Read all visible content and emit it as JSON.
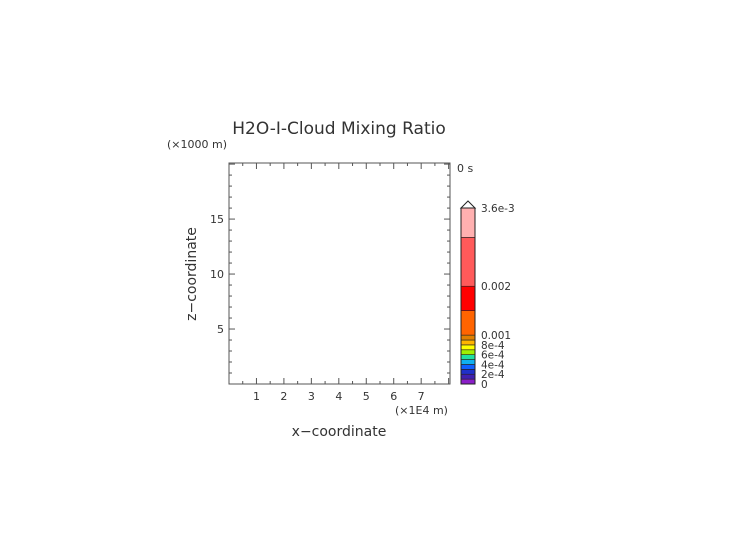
{
  "chart_data": {
    "type": "heatmap",
    "title": "H2O-I-Cloud Mixing Ratio",
    "time_label": "0 s",
    "xlabel": "x−coordinate",
    "ylabel": "z−coordinate",
    "x_unit": "(×1E4 m)",
    "y_unit": "(×1000 m)",
    "xlim": [
      0,
      8.05
    ],
    "ylim": [
      0,
      20.1
    ],
    "x_ticks": [
      1,
      2,
      3,
      4,
      5,
      6,
      7
    ],
    "y_ticks": [
      5,
      10,
      15
    ],
    "grid": false,
    "values": [],
    "colorbar": {
      "range": [
        0,
        0.0036
      ],
      "extend": "max",
      "tick_values": [
        0,
        0.0002,
        0.0004,
        0.0006,
        0.0008,
        0.001,
        0.002,
        0.0036
      ],
      "tick_labels": [
        "0",
        "2e-4",
        "4e-4",
        "6e-4",
        "8e-4",
        "0.001",
        "0.002",
        "3.6e-3"
      ],
      "bands": [
        {
          "from": 0,
          "to": 0.0001,
          "color": "#8a1ec8"
        },
        {
          "from": 0.0001,
          "to": 0.0002,
          "color": "#4020b0"
        },
        {
          "from": 0.0002,
          "to": 0.0003,
          "color": "#2030c8"
        },
        {
          "from": 0.0003,
          "to": 0.0004,
          "color": "#1060ff"
        },
        {
          "from": 0.0004,
          "to": 0.0005,
          "color": "#10b0f0"
        },
        {
          "from": 0.0005,
          "to": 0.0006,
          "color": "#20e0a0"
        },
        {
          "from": 0.0006,
          "to": 0.0007,
          "color": "#a0f000"
        },
        {
          "from": 0.0007,
          "to": 0.0008,
          "color": "#ffff00"
        },
        {
          "from": 0.0008,
          "to": 0.0009,
          "color": "#ffb400"
        },
        {
          "from": 0.0009,
          "to": 0.001,
          "color": "#e08000"
        },
        {
          "from": 0.001,
          "to": 0.0015,
          "color": "#ff6400"
        },
        {
          "from": 0.0015,
          "to": 0.002,
          "color": "#ff0000"
        },
        {
          "from": 0.002,
          "to": 0.003,
          "color": "#ff5a5a"
        },
        {
          "from": 0.003,
          "to": 0.0036,
          "color": "#ffb0b0"
        }
      ],
      "extend_color": "#ffffff"
    }
  }
}
